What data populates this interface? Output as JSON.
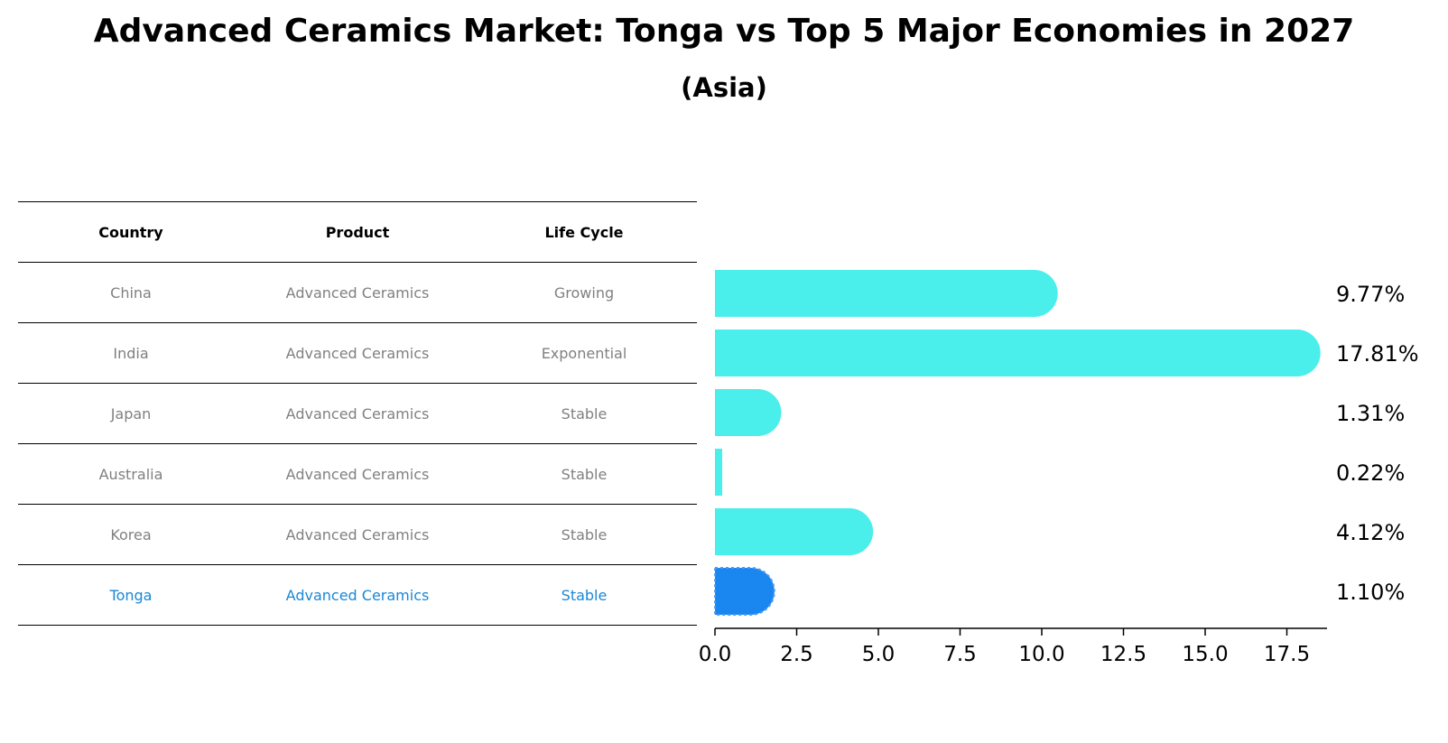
{
  "title": "Advanced Ceramics Market: Tonga vs Top 5 Major Economies in 2027",
  "subtitle": "(Asia)",
  "table": {
    "headers": [
      "Country",
      "Product",
      "Life Cycle"
    ],
    "rows": [
      [
        "China",
        "Advanced Ceramics",
        "Growing"
      ],
      [
        "India",
        "Advanced Ceramics",
        "Exponential"
      ],
      [
        "Japan",
        "Advanced Ceramics",
        "Stable"
      ],
      [
        "Australia",
        "Advanced Ceramics",
        "Stable"
      ],
      [
        "Korea",
        "Advanced Ceramics",
        "Stable"
      ],
      [
        "Tonga",
        "Advanced Ceramics",
        "Stable"
      ]
    ]
  },
  "colors": {
    "bar": "#4aeeea",
    "highlight": "#1a87f0",
    "highlight_text": "#1a87d6",
    "muted_text": "#808080"
  },
  "chart_data": {
    "type": "bar",
    "orientation": "horizontal",
    "categories": [
      "China",
      "India",
      "Japan",
      "Australia",
      "Korea",
      "Tonga"
    ],
    "values": [
      9.77,
      17.81,
      1.31,
      0.22,
      4.12,
      1.1
    ],
    "value_labels": [
      "9.77%",
      "17.81%",
      "1.31%",
      "0.22%",
      "4.12%",
      "1.10%"
    ],
    "highlight": "Tonga",
    "xlim": [
      0,
      18.75
    ],
    "xticks": [
      0.0,
      2.5,
      5.0,
      7.5,
      10.0,
      12.5,
      15.0,
      17.5
    ],
    "xtick_labels": [
      "0.0",
      "2.5",
      "5.0",
      "7.5",
      "10.0",
      "12.5",
      "15.0",
      "17.5"
    ],
    "grid": false
  }
}
